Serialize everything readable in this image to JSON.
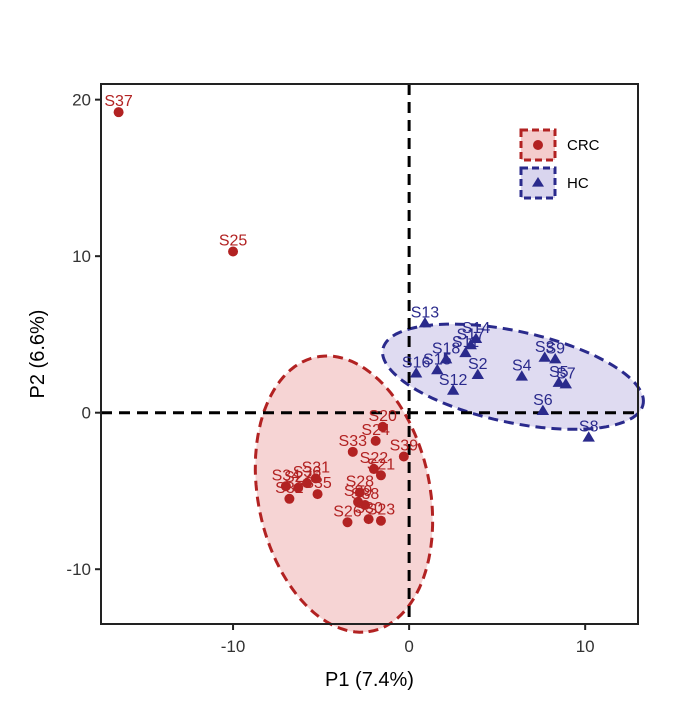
{
  "chart_data": {
    "type": "scatter",
    "title": "",
    "xlabel": "P1 (7.4%)",
    "ylabel": "P2 (6.6%)",
    "xlim": [
      -17.5,
      13
    ],
    "ylim": [
      -13.5,
      21
    ],
    "xticks": [
      -10,
      0,
      10
    ],
    "yticks": [
      -10,
      0,
      10,
      20
    ],
    "xtick_labels": [
      "-10",
      "0",
      "10"
    ],
    "ytick_labels": [
      "-10",
      "0",
      "10",
      "20"
    ],
    "grid": false,
    "legend_position": "top-right",
    "reference_lines": {
      "x": 0,
      "y": 0,
      "style": "dashed"
    },
    "series": [
      {
        "name": "CRC",
        "marker": "circle",
        "color": "#b22222",
        "fill": "#f4cccc",
        "ellipse": {
          "center": [
            -3.7,
            -5.2
          ],
          "rx": 8.9,
          "ry": 4.9,
          "angle_deg": -81
        },
        "points": [
          {
            "label": "S37",
            "x": -16.5,
            "y": 19.2
          },
          {
            "label": "S25",
            "x": -10.0,
            "y": 10.3
          },
          {
            "label": "S20",
            "x": -1.5,
            "y": -0.9
          },
          {
            "label": "S24",
            "x": -1.9,
            "y": -1.8
          },
          {
            "label": "S39",
            "x": -0.3,
            "y": -2.8
          },
          {
            "label": "S33",
            "x": -3.2,
            "y": -2.5
          },
          {
            "label": "S22",
            "x": -2.0,
            "y": -3.6
          },
          {
            "label": "S21",
            "x": -1.6,
            "y": -4.0
          },
          {
            "label": "S31",
            "x": -5.3,
            "y": -4.2
          },
          {
            "label": "S36",
            "x": -5.8,
            "y": -4.5
          },
          {
            "label": "S35",
            "x": -5.2,
            "y": -5.2
          },
          {
            "label": "S34",
            "x": -7.0,
            "y": -4.7
          },
          {
            "label": "S27",
            "x": -6.3,
            "y": -4.8
          },
          {
            "label": "S32",
            "x": -6.8,
            "y": -5.5
          },
          {
            "label": "S28",
            "x": -2.8,
            "y": -5.1
          },
          {
            "label": "S38",
            "x": -2.5,
            "y": -5.9
          },
          {
            "label": "S26",
            "x": -3.5,
            "y": -7.0
          },
          {
            "label": "S30",
            "x": -2.3,
            "y": -6.8
          },
          {
            "label": "S23",
            "x": -1.6,
            "y": -6.9
          },
          {
            "label": "S29",
            "x": -2.9,
            "y": -5.7
          }
        ]
      },
      {
        "name": "HC",
        "marker": "triangle",
        "color": "#2a2a8c",
        "fill": "#d9d5ee",
        "ellipse": {
          "center": [
            5.9,
            2.3
          ],
          "rx": 7.6,
          "ry": 2.9,
          "angle_deg": -14
        },
        "points": [
          {
            "label": "S13",
            "x": 0.9,
            "y": 5.7
          },
          {
            "label": "S14",
            "x": 3.8,
            "y": 4.7
          },
          {
            "label": "S17",
            "x": 3.5,
            "y": 4.3
          },
          {
            "label": "S11",
            "x": 3.2,
            "y": 3.8
          },
          {
            "label": "S18",
            "x": 2.1,
            "y": 3.4
          },
          {
            "label": "S16",
            "x": 0.4,
            "y": 2.5
          },
          {
            "label": "S15",
            "x": 1.6,
            "y": 2.7
          },
          {
            "label": "S2",
            "x": 3.9,
            "y": 2.4
          },
          {
            "label": "S12",
            "x": 2.5,
            "y": 1.4
          },
          {
            "label": "S3",
            "x": 7.7,
            "y": 3.5
          },
          {
            "label": "S9",
            "x": 8.3,
            "y": 3.4
          },
          {
            "label": "S4",
            "x": 6.4,
            "y": 2.3
          },
          {
            "label": "S5",
            "x": 8.5,
            "y": 1.9
          },
          {
            "label": "S7",
            "x": 8.9,
            "y": 1.8
          },
          {
            "label": "S6",
            "x": 7.6,
            "y": 0.1
          },
          {
            "label": "S8",
            "x": 10.2,
            "y": -1.6
          }
        ]
      }
    ],
    "legend": [
      {
        "label": "CRC",
        "marker": "circle",
        "color": "#b22222",
        "fill": "#f4cccc"
      },
      {
        "label": "HC",
        "marker": "triangle",
        "color": "#2a2a8c",
        "fill": "#d9d5ee"
      }
    ]
  }
}
